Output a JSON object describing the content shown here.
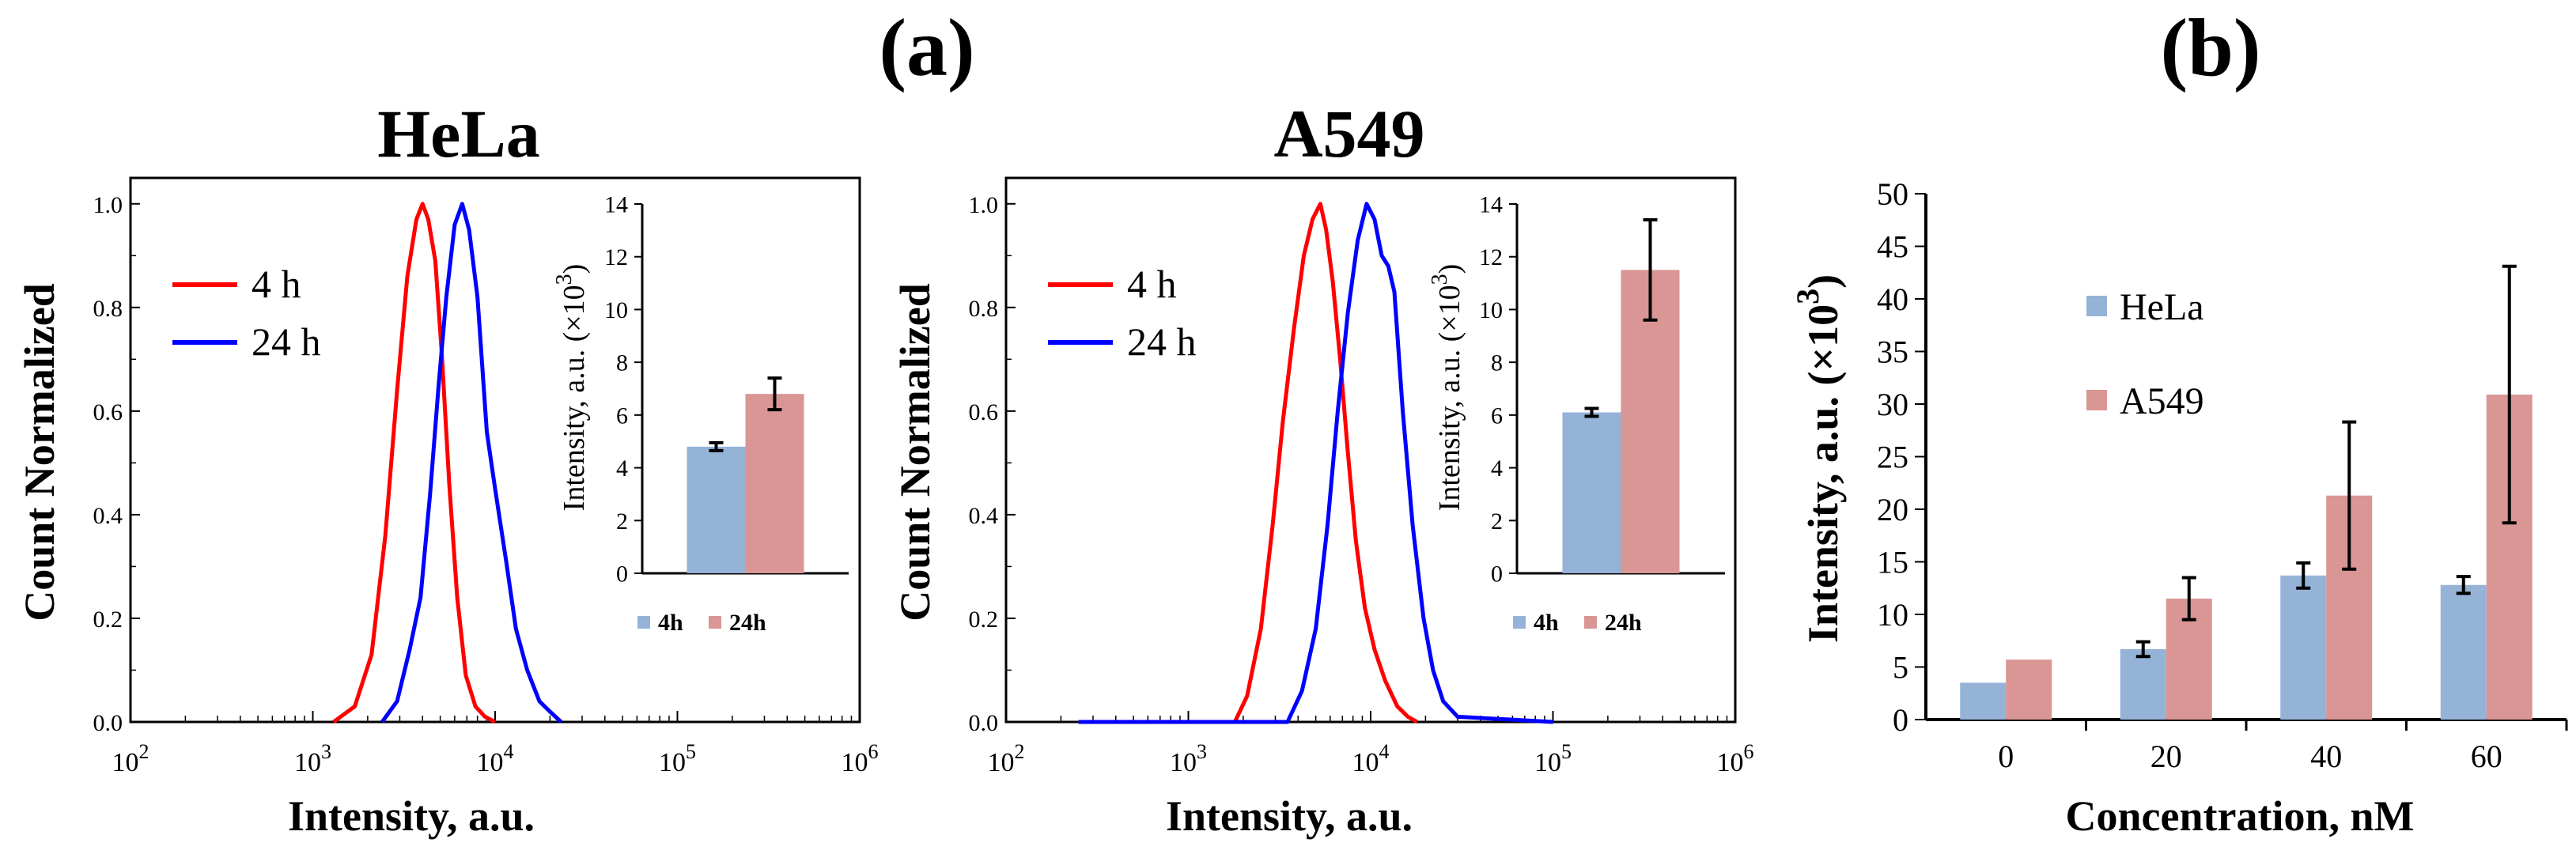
{
  "figure": {
    "panel_a_label": "(a)",
    "panel_b_label": "(b)"
  },
  "colors": {
    "red": "#ff0000",
    "blue": "#0000ff",
    "hela_bar": "#95b3d7",
    "a549_bar": "#d99694"
  },
  "chart_data": [
    {
      "type": "line",
      "title": "HeLa",
      "xlabel": "Intensity, a.u.",
      "ylabel": "Count Normalized",
      "xscale": "log",
      "xlim": [
        100,
        1000000
      ],
      "ylim": [
        0,
        1.05
      ],
      "xticks": [
        {
          "base": "10",
          "exp": "2"
        },
        {
          "base": "10",
          "exp": "3"
        },
        {
          "base": "10",
          "exp": "4"
        },
        {
          "base": "10",
          "exp": "5"
        },
        {
          "base": "10",
          "exp": "6"
        }
      ],
      "yticks": [
        "0.0",
        "0.2",
        "0.4",
        "0.6",
        "0.8",
        "1.0"
      ],
      "legend_placement": "top-left",
      "series": [
        {
          "name": "4 h",
          "color": "#ff0000",
          "x": [
            1300,
            1700,
            2100,
            2500,
            2900,
            3300,
            3700,
            4000,
            4300,
            4700,
            5100,
            5600,
            6200,
            6900,
            7800,
            8800,
            10000
          ],
          "y": [
            0.0,
            0.03,
            0.13,
            0.36,
            0.64,
            0.86,
            0.97,
            1.0,
            0.97,
            0.89,
            0.71,
            0.46,
            0.24,
            0.09,
            0.03,
            0.01,
            0.0
          ]
        },
        {
          "name": "24 h",
          "color": "#0000ff",
          "x": [
            2400,
            2900,
            3400,
            3900,
            4400,
            4900,
            5400,
            6000,
            6600,
            7200,
            8000,
            9000,
            10000,
            11500,
            13000,
            15000,
            17500,
            20000,
            23000
          ],
          "y": [
            0.0,
            0.04,
            0.14,
            0.24,
            0.44,
            0.65,
            0.82,
            0.96,
            1.0,
            0.95,
            0.82,
            0.56,
            0.45,
            0.31,
            0.18,
            0.1,
            0.04,
            0.02,
            0.0
          ]
        }
      ]
    },
    {
      "type": "bar",
      "title": "",
      "xlabel": "",
      "ylabel": "Intensity, a.u. (×10",
      "ylabel_exp": "3",
      "ylabel_close": ")",
      "ylim": [
        0,
        14
      ],
      "yticks": [
        "0",
        "2",
        "4",
        "6",
        "8",
        "10",
        "12",
        "14"
      ],
      "categories": [
        "HeLa"
      ],
      "series": [
        {
          "name": "4h",
          "color": "#95b3d7",
          "values": [
            4.8
          ],
          "errors": [
            0.15
          ]
        },
        {
          "name": "24h",
          "color": "#d99694",
          "values": [
            6.8
          ],
          "errors": [
            0.6
          ]
        }
      ]
    },
    {
      "type": "line",
      "title": "A549",
      "xlabel": "Intensity, a.u.",
      "ylabel": "Count Normalized",
      "xscale": "log",
      "xlim": [
        100,
        1000000
      ],
      "ylim": [
        0,
        1.05
      ],
      "xticks": [
        {
          "base": "10",
          "exp": "2"
        },
        {
          "base": "10",
          "exp": "3"
        },
        {
          "base": "10",
          "exp": "4"
        },
        {
          "base": "10",
          "exp": "5"
        },
        {
          "base": "10",
          "exp": "6"
        }
      ],
      "yticks": [
        "0.0",
        "0.2",
        "0.4",
        "0.6",
        "0.8",
        "1.0"
      ],
      "legend_placement": "top-left",
      "series": [
        {
          "name": "4 h",
          "color": "#ff0000",
          "x": [
            1800,
            2100,
            2500,
            2900,
            3300,
            3800,
            4300,
            4800,
            5300,
            5700,
            6200,
            6800,
            7500,
            8300,
            9300,
            10500,
            12000,
            14000,
            16000,
            18000
          ],
          "y": [
            0.0,
            0.05,
            0.18,
            0.38,
            0.58,
            0.76,
            0.9,
            0.97,
            1.0,
            0.95,
            0.85,
            0.7,
            0.52,
            0.35,
            0.22,
            0.14,
            0.08,
            0.03,
            0.01,
            0.0
          ]
        },
        {
          "name": "24 h",
          "color": "#0000ff",
          "x": [
            250,
            1000,
            3500,
            4200,
            5000,
            5800,
            6600,
            7500,
            8500,
            9500,
            10500,
            11500,
            12500,
            13500,
            15000,
            17000,
            19500,
            22000,
            25000,
            30000,
            100000
          ],
          "y": [
            0.0,
            0.0,
            0.0,
            0.06,
            0.18,
            0.38,
            0.6,
            0.79,
            0.93,
            1.0,
            0.97,
            0.9,
            0.88,
            0.83,
            0.6,
            0.38,
            0.2,
            0.1,
            0.04,
            0.01,
            0.0
          ]
        }
      ]
    },
    {
      "type": "bar",
      "title": "",
      "xlabel": "",
      "ylabel": "Intensity, a.u. (×10",
      "ylabel_exp": "3",
      "ylabel_close": ")",
      "ylim": [
        0,
        14
      ],
      "yticks": [
        "0",
        "2",
        "4",
        "6",
        "8",
        "10",
        "12",
        "14"
      ],
      "categories": [
        "A549"
      ],
      "series": [
        {
          "name": "4h",
          "color": "#95b3d7",
          "values": [
            6.1
          ],
          "errors": [
            0.15
          ]
        },
        {
          "name": "24h",
          "color": "#d99694",
          "values": [
            11.5
          ],
          "errors": [
            1.9
          ]
        }
      ]
    },
    {
      "type": "bar",
      "title": "",
      "xlabel": "Concentration, nM",
      "ylabel": "Intensity, a.u. (×10",
      "ylabel_exp": "3",
      "ylabel_close": ")",
      "ylim": [
        0,
        50
      ],
      "yticks": [
        "0",
        "5",
        "10",
        "15",
        "20",
        "25",
        "30",
        "35",
        "40",
        "45",
        "50"
      ],
      "categories": [
        "0",
        "20",
        "40",
        "60"
      ],
      "legend_placement": "left",
      "series": [
        {
          "name": "HeLa",
          "color": "#95b3d7",
          "values": [
            3.5,
            6.7,
            13.7,
            12.8
          ],
          "errors": [
            0,
            0.7,
            1.2,
            0.8
          ]
        },
        {
          "name": "A549",
          "color": "#d99694",
          "values": [
            5.7,
            11.5,
            21.3,
            30.9
          ],
          "errors": [
            0,
            2.0,
            7.0,
            12.2
          ]
        }
      ]
    }
  ]
}
